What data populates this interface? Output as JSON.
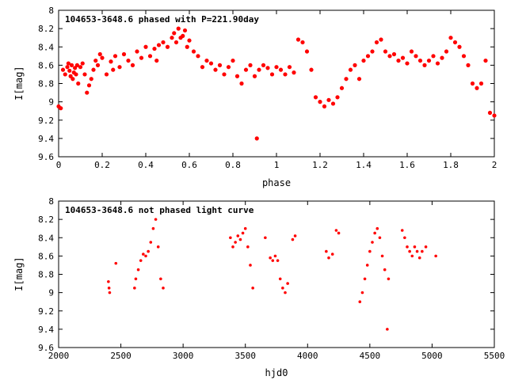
{
  "chart_data": [
    {
      "type": "scatter",
      "title": "104653-3648.6 phased with P=221.90day",
      "xlabel": "phase",
      "ylabel": "I[mag]",
      "xlim": [
        0,
        2
      ],
      "ylim": [
        8,
        9.6
      ],
      "y_inverted": true,
      "grid": false,
      "marker_color": "#ff0000",
      "marker": "filled-circle",
      "x_ticks": [
        "0",
        "0.2",
        "0.4",
        "0.6",
        "0.8",
        "1",
        "1.2",
        "1.4",
        "1.6",
        "1.8",
        "2"
      ],
      "x_tick_values": [
        0,
        0.2,
        0.4,
        0.6,
        0.8,
        1,
        1.2,
        1.4,
        1.6,
        1.8,
        2
      ],
      "y_ticks": [
        "8",
        "8.2",
        "8.4",
        "8.6",
        "8.8",
        "9",
        "9.2",
        "9.4",
        "9.6"
      ],
      "y_tick_values": [
        8,
        8.2,
        8.4,
        8.6,
        8.8,
        9,
        9.2,
        9.4,
        9.6
      ],
      "points": [
        [
          0.0,
          9.05
        ],
        [
          0.01,
          9.07
        ],
        [
          0.02,
          8.65
        ],
        [
          0.03,
          8.7
        ],
        [
          0.04,
          8.62
        ],
        [
          0.045,
          8.58
        ],
        [
          0.05,
          8.66
        ],
        [
          0.055,
          8.72
        ],
        [
          0.06,
          8.6
        ],
        [
          0.065,
          8.75
        ],
        [
          0.07,
          8.68
        ],
        [
          0.075,
          8.63
        ],
        [
          0.08,
          8.7
        ],
        [
          0.085,
          8.6
        ],
        [
          0.09,
          8.8
        ],
        [
          0.1,
          8.62
        ],
        [
          0.11,
          8.58
        ],
        [
          0.12,
          8.7
        ],
        [
          0.13,
          8.9
        ],
        [
          0.14,
          8.82
        ],
        [
          0.15,
          8.75
        ],
        [
          0.16,
          8.65
        ],
        [
          0.17,
          8.55
        ],
        [
          0.18,
          8.6
        ],
        [
          0.19,
          8.48
        ],
        [
          0.2,
          8.52
        ],
        [
          0.22,
          8.7
        ],
        [
          0.24,
          8.56
        ],
        [
          0.25,
          8.65
        ],
        [
          0.26,
          8.5
        ],
        [
          0.28,
          8.62
        ],
        [
          0.3,
          8.48
        ],
        [
          0.32,
          8.55
        ],
        [
          0.34,
          8.6
        ],
        [
          0.36,
          8.45
        ],
        [
          0.38,
          8.52
        ],
        [
          0.4,
          8.4
        ],
        [
          0.42,
          8.5
        ],
        [
          0.44,
          8.42
        ],
        [
          0.45,
          8.55
        ],
        [
          0.46,
          8.38
        ],
        [
          0.48,
          8.35
        ],
        [
          0.5,
          8.4
        ],
        [
          0.52,
          8.3
        ],
        [
          0.53,
          8.25
        ],
        [
          0.54,
          8.35
        ],
        [
          0.55,
          8.2
        ],
        [
          0.56,
          8.3
        ],
        [
          0.57,
          8.28
        ],
        [
          0.58,
          8.22
        ],
        [
          0.59,
          8.4
        ],
        [
          0.6,
          8.33
        ],
        [
          0.62,
          8.45
        ],
        [
          0.64,
          8.5
        ],
        [
          0.66,
          8.62
        ],
        [
          0.68,
          8.55
        ],
        [
          0.7,
          8.58
        ],
        [
          0.72,
          8.65
        ],
        [
          0.74,
          8.6
        ],
        [
          0.76,
          8.7
        ],
        [
          0.78,
          8.62
        ],
        [
          0.8,
          8.55
        ],
        [
          0.82,
          8.72
        ],
        [
          0.84,
          8.8
        ],
        [
          0.86,
          8.65
        ],
        [
          0.88,
          8.6
        ],
        [
          0.9,
          8.72
        ],
        [
          0.91,
          9.4
        ],
        [
          0.92,
          8.65
        ],
        [
          0.94,
          8.6
        ],
        [
          0.96,
          8.63
        ],
        [
          0.98,
          8.7
        ],
        [
          1.0,
          8.62
        ],
        [
          1.02,
          8.65
        ],
        [
          1.04,
          8.7
        ],
        [
          1.06,
          8.62
        ],
        [
          1.08,
          8.68
        ],
        [
          1.1,
          8.32
        ],
        [
          1.12,
          8.35
        ],
        [
          1.14,
          8.45
        ],
        [
          1.16,
          8.65
        ],
        [
          1.18,
          8.95
        ],
        [
          1.2,
          9.0
        ],
        [
          1.22,
          9.05
        ],
        [
          1.24,
          8.98
        ],
        [
          1.26,
          9.02
        ],
        [
          1.28,
          8.95
        ],
        [
          1.3,
          8.85
        ],
        [
          1.32,
          8.75
        ],
        [
          1.34,
          8.65
        ],
        [
          1.36,
          8.6
        ],
        [
          1.38,
          8.75
        ],
        [
          1.4,
          8.55
        ],
        [
          1.42,
          8.5
        ],
        [
          1.44,
          8.45
        ],
        [
          1.46,
          8.35
        ],
        [
          1.48,
          8.32
        ],
        [
          1.5,
          8.45
        ],
        [
          1.52,
          8.5
        ],
        [
          1.54,
          8.48
        ],
        [
          1.56,
          8.55
        ],
        [
          1.58,
          8.52
        ],
        [
          1.6,
          8.58
        ],
        [
          1.62,
          8.45
        ],
        [
          1.64,
          8.5
        ],
        [
          1.66,
          8.55
        ],
        [
          1.68,
          8.6
        ],
        [
          1.7,
          8.55
        ],
        [
          1.72,
          8.5
        ],
        [
          1.74,
          8.58
        ],
        [
          1.76,
          8.52
        ],
        [
          1.78,
          8.45
        ],
        [
          1.8,
          8.3
        ],
        [
          1.82,
          8.35
        ],
        [
          1.84,
          8.4
        ],
        [
          1.86,
          8.5
        ],
        [
          1.88,
          8.6
        ],
        [
          1.9,
          8.8
        ],
        [
          1.92,
          8.85
        ],
        [
          1.94,
          8.8
        ],
        [
          1.96,
          8.55
        ],
        [
          1.98,
          9.12
        ],
        [
          2.0,
          9.15
        ]
      ]
    },
    {
      "type": "scatter",
      "title": "104653-3648.6 not phased light curve",
      "xlabel": "hjd0",
      "ylabel": "I[mag]",
      "xlim": [
        2000,
        5500
      ],
      "ylim": [
        8,
        9.6
      ],
      "y_inverted": true,
      "grid": false,
      "marker_color": "#ff0000",
      "marker": "filled-circle",
      "x_ticks": [
        "2000",
        "2500",
        "3000",
        "3500",
        "4000",
        "4500",
        "5000",
        "5500"
      ],
      "x_tick_values": [
        2000,
        2500,
        3000,
        3500,
        4000,
        4500,
        5000,
        5500
      ],
      "y_ticks": [
        "8",
        "8.2",
        "8.4",
        "8.6",
        "8.8",
        "9",
        "9.2",
        "9.4",
        "9.6"
      ],
      "y_tick_values": [
        8,
        8.2,
        8.4,
        8.6,
        8.8,
        9,
        9.2,
        9.4,
        9.6
      ],
      "points": [
        [
          2400,
          8.88
        ],
        [
          2405,
          8.95
        ],
        [
          2410,
          9.0
        ],
        [
          2460,
          8.68
        ],
        [
          2610,
          8.95
        ],
        [
          2620,
          8.85
        ],
        [
          2640,
          8.75
        ],
        [
          2660,
          8.65
        ],
        [
          2680,
          8.58
        ],
        [
          2700,
          8.6
        ],
        [
          2720,
          8.55
        ],
        [
          2740,
          8.45
        ],
        [
          2760,
          8.3
        ],
        [
          2780,
          8.2
        ],
        [
          2800,
          8.5
        ],
        [
          2820,
          8.85
        ],
        [
          2840,
          8.95
        ],
        [
          3380,
          8.4
        ],
        [
          3400,
          8.5
        ],
        [
          3420,
          8.45
        ],
        [
          3440,
          8.38
        ],
        [
          3460,
          8.42
        ],
        [
          3480,
          8.35
        ],
        [
          3500,
          8.3
        ],
        [
          3520,
          8.5
        ],
        [
          3540,
          8.7
        ],
        [
          3560,
          8.95
        ],
        [
          3660,
          8.4
        ],
        [
          3700,
          8.62
        ],
        [
          3720,
          8.65
        ],
        [
          3740,
          8.6
        ],
        [
          3760,
          8.65
        ],
        [
          3780,
          8.85
        ],
        [
          3800,
          8.95
        ],
        [
          3820,
          9.0
        ],
        [
          3840,
          8.9
        ],
        [
          3880,
          8.42
        ],
        [
          3900,
          8.38
        ],
        [
          4150,
          8.55
        ],
        [
          4170,
          8.62
        ],
        [
          4200,
          8.58
        ],
        [
          4230,
          8.32
        ],
        [
          4250,
          8.35
        ],
        [
          4420,
          9.1
        ],
        [
          4440,
          9.0
        ],
        [
          4460,
          8.85
        ],
        [
          4480,
          8.7
        ],
        [
          4500,
          8.55
        ],
        [
          4520,
          8.45
        ],
        [
          4540,
          8.35
        ],
        [
          4560,
          8.3
        ],
        [
          4580,
          8.4
        ],
        [
          4600,
          8.6
        ],
        [
          4620,
          8.75
        ],
        [
          4640,
          9.4
        ],
        [
          4650,
          8.85
        ],
        [
          4760,
          8.32
        ],
        [
          4780,
          8.4
        ],
        [
          4800,
          8.5
        ],
        [
          4820,
          8.55
        ],
        [
          4840,
          8.6
        ],
        [
          4860,
          8.5
        ],
        [
          4880,
          8.55
        ],
        [
          4900,
          8.62
        ],
        [
          4920,
          8.55
        ],
        [
          4950,
          8.5
        ],
        [
          5030,
          8.6
        ]
      ]
    }
  ]
}
